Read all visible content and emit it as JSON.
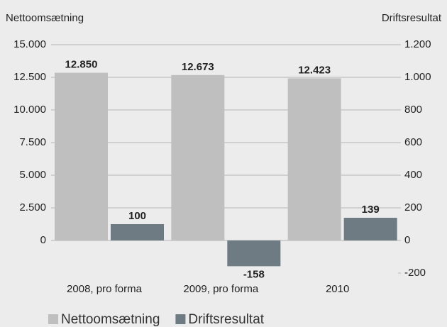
{
  "chart_data": {
    "type": "bar",
    "y_label": "Nettoomsætning",
    "y2_label": "Driftsresultat",
    "categories": [
      "2008, pro forma",
      "2009, pro forma",
      "2010"
    ],
    "series": [
      {
        "name": "Nettoomsætning",
        "color": "#bfbfbf",
        "values": [
          12850,
          12673,
          12423
        ],
        "value_labels": [
          "12.850",
          "12.673",
          "12.423"
        ]
      },
      {
        "name": "Driftsresultat",
        "color": "#6e7b83",
        "axis": "y2",
        "values": [
          100,
          -158,
          139
        ]
      }
    ],
    "ylim": [
      -2500,
      15000
    ],
    "yticks": [
      0,
      {
        "value": 2500,
        "label": "2.500"
      },
      {
        "value": 5000,
        "label": "5.000"
      },
      {
        "value": 7500,
        "label": "7.500"
      },
      {
        "value": 10000,
        "label": "10.000"
      },
      {
        "value": 12500,
        "label": "12.500"
      },
      {
        "value": 15000,
        "label": "15.000"
      }
    ],
    "y2lim": [
      -200,
      1200
    ],
    "y2ticks": [
      -200,
      0,
      200,
      400,
      600,
      800,
      {
        "value": 1000,
        "label": "1.000"
      },
      {
        "value": 1200,
        "label": "1.200"
      }
    ],
    "grid": true
  }
}
